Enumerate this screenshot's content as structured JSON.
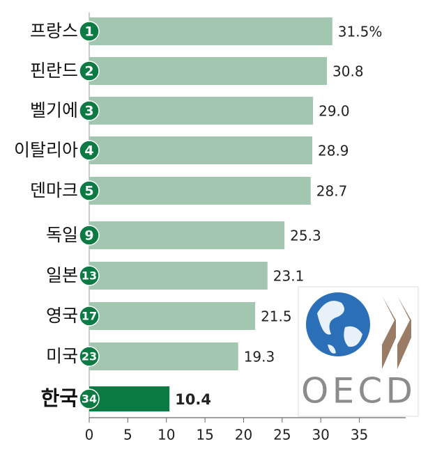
{
  "chart_data": {
    "type": "bar",
    "orientation": "horizontal",
    "categories": [
      "프랑스",
      "핀란드",
      "벨기에",
      "이탈리아",
      "덴마크",
      "독일",
      "일본",
      "영국",
      "미국",
      "한국"
    ],
    "ranks": [
      1,
      2,
      3,
      4,
      5,
      9,
      13,
      17,
      23,
      34
    ],
    "values": [
      31.5,
      30.8,
      29.0,
      28.9,
      28.7,
      25.3,
      23.1,
      21.5,
      19.3,
      10.4
    ],
    "value_labels": [
      "31.5%",
      "30.8",
      "29.0",
      "28.9",
      "28.7",
      "25.3",
      "23.1",
      "21.5",
      "19.3",
      "10.4"
    ],
    "colors": [
      "#a3c6b0",
      "#a3c6b0",
      "#a3c6b0",
      "#a3c6b0",
      "#a3c6b0",
      "#a3c6b0",
      "#a3c6b0",
      "#a3c6b0",
      "#a3c6b0",
      "#0b7a43"
    ],
    "badge_color": "#0b7a43",
    "xlim": [
      0,
      41
    ],
    "xticks": [
      0,
      5,
      10,
      15,
      20,
      25,
      30,
      35
    ],
    "logo_text": "OECD"
  }
}
